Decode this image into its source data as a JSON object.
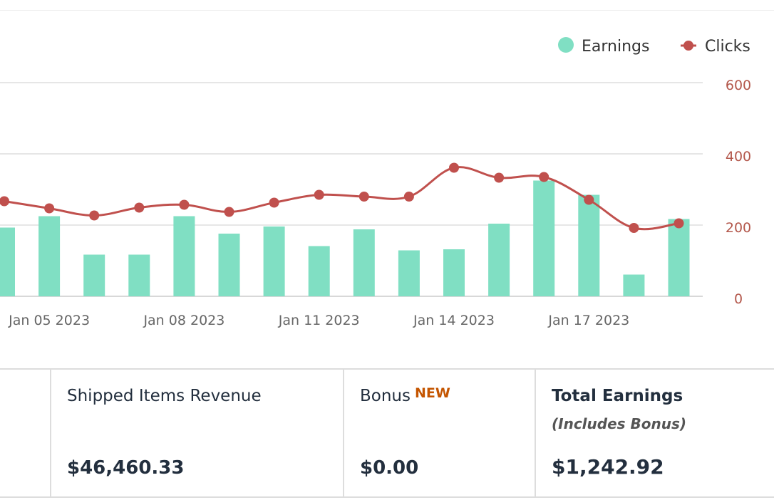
{
  "legend": {
    "earnings_label": "Earnings",
    "clicks_label": "Clicks"
  },
  "colors": {
    "earnings": "#80dfc3",
    "clicks": "#c0504d",
    "grid": "#dddddd",
    "axis_text": "#b3574b",
    "x_text": "#666666",
    "new_badge": "#c45500"
  },
  "chart_data": {
    "type": "bar",
    "title": "",
    "legend_position": "top-right",
    "grid": true,
    "x": [
      "Jan 04 2023",
      "Jan 05 2023",
      "Jan 06 2023",
      "Jan 07 2023",
      "Jan 08 2023",
      "Jan 09 2023",
      "Jan 10 2023",
      "Jan 11 2023",
      "Jan 12 2023",
      "Jan 13 2023",
      "Jan 14 2023",
      "Jan 15 2023",
      "Jan 16 2023",
      "Jan 17 2023",
      "Jan 18 2023",
      "Jan 19 2023"
    ],
    "x_tick_labels": [
      "Jan 05 2023",
      "Jan 08 2023",
      "Jan 11 2023",
      "Jan 14 2023",
      "Jan 17 2023"
    ],
    "y_right": {
      "ticks": [
        "0",
        "200",
        "400",
        "600"
      ],
      "range": [
        0,
        600
      ]
    },
    "series": [
      {
        "name": "Earnings",
        "type": "bar",
        "values": [
          193,
          225,
          117,
          117,
          225,
          176,
          196,
          141,
          188,
          129,
          132,
          204,
          325,
          285,
          61,
          217
        ]
      },
      {
        "name": "Clicks",
        "type": "line",
        "values": [
          267,
          247,
          227,
          249,
          257,
          237,
          263,
          285,
          280,
          280,
          361,
          333,
          335,
          271,
          192,
          205
        ]
      }
    ]
  },
  "summary": {
    "revenue_label": "Shipped Items Revenue",
    "revenue_value": "$46,460.33",
    "bonus_label": "Bonus",
    "bonus_badge": "NEW",
    "bonus_value": "$0.00",
    "total_label": "Total Earnings",
    "total_sub": "(Includes Bonus)",
    "total_value": "$1,242.92"
  }
}
